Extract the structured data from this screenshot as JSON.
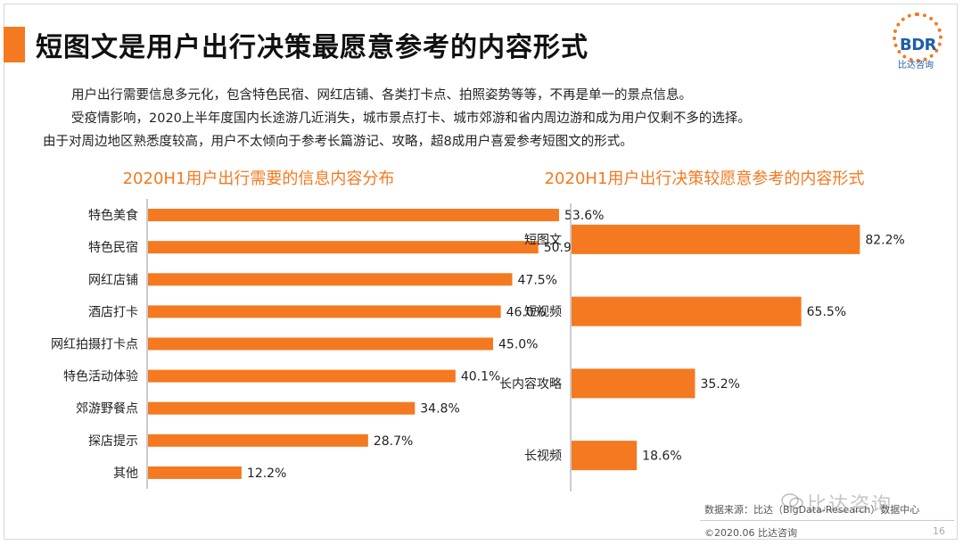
{
  "title": "短图文是用户出行决策最愿意参考的内容形式",
  "logo": {
    "brand": "BDR",
    "subtitle": "比达咨询"
  },
  "intro": {
    "line1": "用户出行需要信息多元化，包含特色民宿、网红店铺、各类打卡点、拍照姿势等等，不再是单一的景点信息。",
    "line2": "受疫情影响，2020上半年度国内长途游几近消失，城市景点打卡、城市郊游和省内周边游和成为用户仅剩不多的选择。",
    "line3": "由于对周边地区熟悉度较高，用户不太倾向于参考长篇游记、攻略，超8成用户喜爱参考短图文的形式。"
  },
  "colors": {
    "accent": "#f47920",
    "brand_blue": "#1f5da8"
  },
  "chart_data": [
    {
      "type": "bar",
      "orientation": "horizontal",
      "title": "2020H1用户出行需要的信息内容分布",
      "categories": [
        "特色美食",
        "特色民宿",
        "网红店铺",
        "酒店打卡",
        "网红拍摄打卡点",
        "特色活动体验",
        "郊游野餐点",
        "探店提示",
        "其他"
      ],
      "values": [
        53.6,
        50.9,
        47.5,
        46.0,
        45.0,
        40.1,
        34.8,
        28.7,
        12.2
      ],
      "value_labels": [
        "53.6%",
        "50.9%",
        "47.5%",
        "46.0%",
        "45.0%",
        "40.1%",
        "34.8%",
        "28.7%",
        "12.2%"
      ],
      "unit": "%",
      "xlim": [
        0,
        60
      ]
    },
    {
      "type": "bar",
      "orientation": "horizontal",
      "title": "2020H1用户出行决策较愿意参考的内容形式",
      "categories": [
        "短图文",
        "短视频",
        "长内容攻略",
        "长视频"
      ],
      "values": [
        82.2,
        65.5,
        35.2,
        18.6
      ],
      "value_labels": [
        "82.2%",
        "65.5%",
        "35.2%",
        "18.6%"
      ],
      "unit": "%",
      "xlim": [
        0,
        90
      ]
    }
  ],
  "footer": {
    "source": "数据来源：比达（BigData-Research）数据中心",
    "copyright": "©2020.06  比达咨询",
    "page": "16"
  },
  "watermark": "比达咨询"
}
